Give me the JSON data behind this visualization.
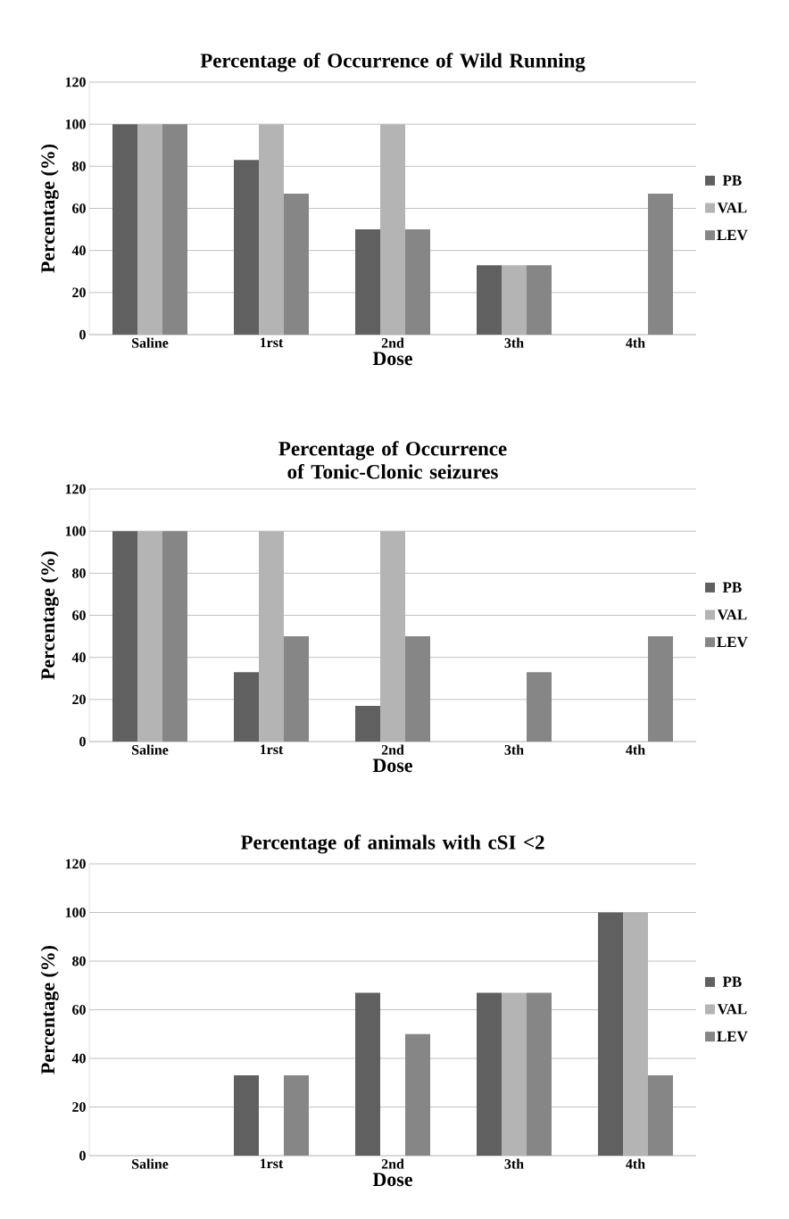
{
  "chart_data": [
    {
      "type": "bar",
      "title": "Percentage of Occurrence of Wild Running",
      "xlabel": "Dose",
      "ylabel": "Percentage (%)",
      "categories": [
        "Saline",
        "1rst",
        "2nd",
        "3th",
        "4th"
      ],
      "series": [
        {
          "name": "PB",
          "color": "#606060",
          "values": [
            100,
            83,
            50,
            33,
            0
          ]
        },
        {
          "name": "VAL",
          "color": "#b4b4b4",
          "values": [
            100,
            100,
            100,
            33,
            0
          ]
        },
        {
          "name": "LEV",
          "color": "#868686",
          "values": [
            100,
            67,
            50,
            33,
            67
          ]
        }
      ],
      "ylim": [
        0,
        120
      ],
      "yticks": [
        0,
        20,
        40,
        60,
        80,
        100,
        120
      ],
      "grid": "y",
      "legend": "right"
    },
    {
      "type": "bar",
      "title": "Percentage of Occurrence of Tonic-Clonic seizures",
      "xlabel": "Dose",
      "ylabel": "Percentage (%)",
      "categories": [
        "Saline",
        "1rst",
        "2nd",
        "3th",
        "4th"
      ],
      "series": [
        {
          "name": "PB",
          "color": "#606060",
          "values": [
            100,
            33,
            17,
            0,
            0
          ]
        },
        {
          "name": "VAL",
          "color": "#b4b4b4",
          "values": [
            100,
            100,
            100,
            0,
            0
          ]
        },
        {
          "name": "LEV",
          "color": "#868686",
          "values": [
            100,
            50,
            50,
            33,
            50
          ]
        }
      ],
      "ylim": [
        0,
        120
      ],
      "yticks": [
        0,
        20,
        40,
        60,
        80,
        100,
        120
      ],
      "grid": "y",
      "legend": "right"
    },
    {
      "type": "bar",
      "title": "Percentage of animals with cSI <2",
      "xlabel": "Dose",
      "ylabel": "Percentage (%)",
      "categories": [
        "Saline",
        "1rst",
        "2nd",
        "3th",
        "4th"
      ],
      "series": [
        {
          "name": "PB",
          "color": "#606060",
          "values": [
            0,
            33,
            67,
            67,
            100
          ]
        },
        {
          "name": "VAL",
          "color": "#b4b4b4",
          "values": [
            0,
            0,
            0,
            67,
            100
          ]
        },
        {
          "name": "LEV",
          "color": "#868686",
          "values": [
            0,
            33,
            50,
            67,
            33
          ]
        }
      ],
      "ylim": [
        0,
        120
      ],
      "yticks": [
        0,
        20,
        40,
        60,
        80,
        100,
        120
      ],
      "grid": "y",
      "legend": "right"
    }
  ]
}
